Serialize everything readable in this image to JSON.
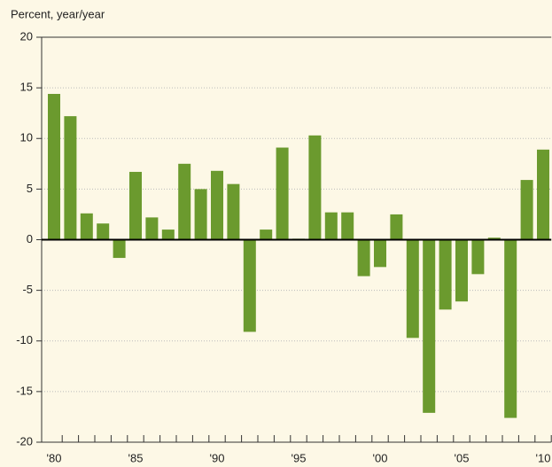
{
  "chart_data": {
    "type": "bar",
    "y_label": "Percent, year/year",
    "categories": [
      "'80",
      null,
      null,
      null,
      null,
      "'85",
      null,
      null,
      null,
      null,
      "'90",
      null,
      null,
      null,
      null,
      "'95",
      null,
      null,
      null,
      null,
      "'00",
      null,
      null,
      null,
      null,
      "'05",
      null,
      null,
      null,
      null,
      "'10"
    ],
    "values": [
      14.4,
      12.2,
      2.6,
      1.6,
      -1.8,
      6.7,
      2.2,
      1.0,
      7.5,
      5.0,
      6.8,
      5.5,
      -9.1,
      1.0,
      9.1,
      0.1,
      10.3,
      2.7,
      2.7,
      -3.6,
      -2.7,
      2.5,
      -9.7,
      -17.1,
      -6.9,
      -6.1,
      -3.4,
      0.2,
      -17.6,
      5.9,
      8.9
    ],
    "color": "#6b9a2e",
    "ylim": [
      -20,
      20
    ],
    "yticks": [
      -20,
      -15,
      -10,
      -5,
      0,
      5,
      10,
      15,
      20
    ],
    "grid": true
  }
}
